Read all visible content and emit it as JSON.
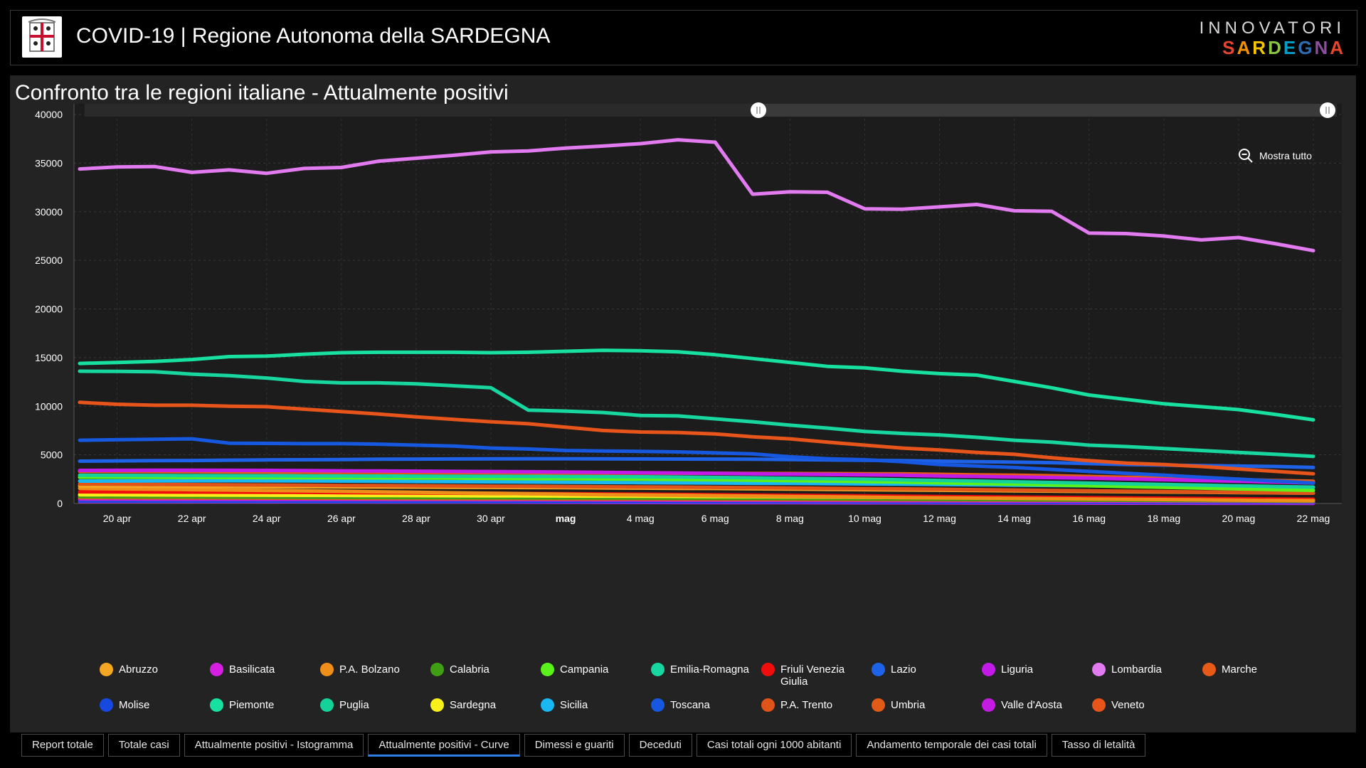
{
  "header": {
    "title": "COVID-19 | Regione Autonoma della SARDEGNA",
    "brand_top": "INNOVATORI",
    "brand_bottom_letters": [
      "S",
      "A",
      "R",
      "D",
      "E",
      "G",
      "N",
      "A"
    ],
    "brand_colors": [
      "#e8452c",
      "#f39200",
      "#f7c400",
      "#8cc63f",
      "#00a0c6",
      "#2e6db4",
      "#8a4f9e",
      "#e8452c"
    ]
  },
  "panel": {
    "title": "Confronto tra le regioni italiane - Attualmente positivi"
  },
  "zoom": {
    "label": "Mostra tutto"
  },
  "chart_data": {
    "type": "line",
    "title": "Confronto tra le regioni italiane - Attualmente positivi",
    "xlabel": "",
    "ylabel": "",
    "ylim": [
      0,
      40000
    ],
    "y_ticks": [
      0,
      5000,
      10000,
      15000,
      20000,
      25000,
      30000,
      35000,
      40000
    ],
    "x_start_day": 0,
    "x_end_day": 34,
    "x_ticks": [
      {
        "day": 1,
        "label": "20 apr",
        "bold": false
      },
      {
        "day": 3,
        "label": "22 apr",
        "bold": false
      },
      {
        "day": 5,
        "label": "24 apr",
        "bold": false
      },
      {
        "day": 7,
        "label": "26 apr",
        "bold": false
      },
      {
        "day": 9,
        "label": "28 apr",
        "bold": false
      },
      {
        "day": 11,
        "label": "30 apr",
        "bold": false
      },
      {
        "day": 13,
        "label": "mag",
        "bold": true
      },
      {
        "day": 15,
        "label": "4 mag",
        "bold": false
      },
      {
        "day": 17,
        "label": "6 mag",
        "bold": false
      },
      {
        "day": 19,
        "label": "8 mag",
        "bold": false
      },
      {
        "day": 21,
        "label": "10 mag",
        "bold": false
      },
      {
        "day": 23,
        "label": "12 mag",
        "bold": false
      },
      {
        "day": 25,
        "label": "14 mag",
        "bold": false
      },
      {
        "day": 27,
        "label": "16 mag",
        "bold": false
      },
      {
        "day": 29,
        "label": "18 mag",
        "bold": false
      },
      {
        "day": 31,
        "label": "20 mag",
        "bold": false
      },
      {
        "day": 33,
        "label": "22 mag",
        "bold": false
      }
    ],
    "series": [
      {
        "name": "Abruzzo",
        "color": "#f5a623",
        "values": [
          1800,
          1780,
          1760,
          1750,
          1740,
          1720,
          1710,
          1700,
          1690,
          1680,
          1660,
          1650,
          1640,
          1620,
          1600,
          1580,
          1560,
          1540,
          1510,
          1480,
          1450,
          1420,
          1390,
          1360,
          1330,
          1300,
          1270,
          1240,
          1210,
          1180,
          1150,
          1120,
          1090,
          1060
        ]
      },
      {
        "name": "Basilicata",
        "color": "#d61fe0",
        "values": [
          200,
          200,
          195,
          190,
          190,
          185,
          180,
          175,
          170,
          165,
          160,
          150,
          140,
          130,
          120,
          110,
          100,
          95,
          90,
          85,
          80,
          75,
          70,
          65,
          60,
          55,
          50,
          45,
          40,
          35,
          30,
          28,
          26,
          25
        ]
      },
      {
        "name": "P.A. Bolzano",
        "color": "#ef8f1a",
        "values": [
          1550,
          1500,
          1460,
          1420,
          1380,
          1340,
          1300,
          1250,
          1200,
          1150,
          1100,
          1050,
          1000,
          950,
          900,
          870,
          840,
          800,
          760,
          720,
          690,
          650,
          610,
          580,
          550,
          520,
          490,
          460,
          430,
          400,
          370,
          340,
          310,
          290
        ]
      },
      {
        "name": "Calabria",
        "color": "#3f9e13",
        "values": [
          700,
          690,
          680,
          670,
          660,
          650,
          640,
          630,
          620,
          610,
          600,
          590,
          580,
          570,
          560,
          550,
          540,
          530,
          520,
          505,
          490,
          470,
          450,
          430,
          410,
          390,
          370,
          350,
          330,
          310,
          290,
          270,
          250,
          230
        ]
      },
      {
        "name": "Campania",
        "color": "#5af21a",
        "values": [
          2700,
          2700,
          2690,
          2680,
          2670,
          2660,
          2650,
          2640,
          2630,
          2620,
          2600,
          2580,
          2560,
          2540,
          2520,
          2500,
          2470,
          2440,
          2400,
          2350,
          2300,
          2250,
          2200,
          2120,
          2050,
          1980,
          1900,
          1820,
          1740,
          1660,
          1580,
          1500,
          1420,
          1350
        ]
      },
      {
        "name": "Emilia-Romagna",
        "color": "#18d6a0",
        "values": [
          13600,
          13580,
          13550,
          13300,
          13150,
          12900,
          12550,
          12400,
          12400,
          12300,
          12100,
          11900,
          9600,
          9500,
          9350,
          9050,
          9000,
          8700,
          8400,
          8050,
          7750,
          7400,
          7200,
          7050,
          6800,
          6500,
          6300,
          6000,
          5850,
          5650,
          5450,
          5250,
          5050,
          4850
        ]
      },
      {
        "name": "Friuli Venezia Giulia",
        "color": "#f20d0d",
        "values": [
          1200,
          1190,
          1180,
          1170,
          1160,
          1150,
          1140,
          1120,
          1100,
          1080,
          1060,
          1040,
          1020,
          1000,
          980,
          960,
          930,
          900,
          870,
          840,
          810,
          780,
          750,
          720,
          690,
          660,
          630,
          600,
          570,
          540,
          510,
          480,
          450,
          430
        ]
      },
      {
        "name": "Lazio",
        "color": "#1e62e8",
        "values": [
          4350,
          4380,
          4400,
          4420,
          4450,
          4480,
          4500,
          4520,
          4550,
          4560,
          4580,
          4590,
          4600,
          4600,
          4590,
          4580,
          4570,
          4560,
          4550,
          4520,
          4480,
          4440,
          4400,
          4350,
          4300,
          4250,
          4200,
          4100,
          4000,
          3950,
          3900,
          3850,
          3800,
          3700
        ]
      },
      {
        "name": "Liguria",
        "color": "#c21be8",
        "values": [
          3400,
          3410,
          3420,
          3420,
          3410,
          3400,
          3380,
          3360,
          3340,
          3320,
          3300,
          3280,
          3260,
          3230,
          3200,
          3170,
          3140,
          3100,
          3060,
          3020,
          2980,
          2940,
          2900,
          2840,
          2780,
          2720,
          2660,
          2600,
          2520,
          2440,
          2360,
          2280,
          2200,
          2100
        ]
      },
      {
        "name": "Lombardia",
        "color": "#e27af0",
        "values": [
          34400,
          34600,
          34650,
          34050,
          34300,
          33950,
          34450,
          34550,
          35200,
          35500,
          35800,
          36150,
          36250,
          36550,
          36750,
          37000,
          37400,
          37150,
          31800,
          32050,
          32000,
          30300,
          30250,
          30500,
          30750,
          30100,
          30050,
          27800,
          27750,
          27500,
          27100,
          27350,
          26700,
          26000
        ]
      },
      {
        "name": "Marche",
        "color": "#e85a17",
        "values": [
          3300,
          3290,
          3280,
          3270,
          3250,
          3230,
          3210,
          3200,
          3190,
          3180,
          3170,
          3160,
          3150,
          3140,
          3130,
          3120,
          3110,
          3100,
          3090,
          3080,
          3070,
          3060,
          3040,
          3000,
          2950,
          2900,
          2850,
          2780,
          2700,
          2620,
          2540,
          2450,
          2360,
          2280
        ]
      },
      {
        "name": "Molise",
        "color": "#1749e0",
        "values": [
          250,
          245,
          240,
          235,
          230,
          225,
          220,
          215,
          210,
          205,
          200,
          195,
          190,
          185,
          180,
          175,
          170,
          165,
          160,
          155,
          150,
          145,
          140,
          135,
          130,
          125,
          120,
          115,
          110,
          105,
          100,
          95,
          92,
          90
        ]
      },
      {
        "name": "Piemonte",
        "color": "#17e0a0",
        "values": [
          14400,
          14500,
          14600,
          14800,
          15100,
          15150,
          15350,
          15500,
          15550,
          15550,
          15550,
          15500,
          15550,
          15650,
          15750,
          15700,
          15600,
          15300,
          14900,
          14500,
          14100,
          13950,
          13600,
          13350,
          13200,
          12550,
          11900,
          11150,
          10700,
          10250,
          9950,
          9650,
          9150,
          8600
        ]
      },
      {
        "name": "Puglia",
        "color": "#14d29a",
        "values": [
          2900,
          2890,
          2880,
          2870,
          2860,
          2850,
          2840,
          2830,
          2820,
          2810,
          2800,
          2790,
          2780,
          2770,
          2760,
          2740,
          2710,
          2680,
          2640,
          2590,
          2540,
          2490,
          2430,
          2370,
          2300,
          2230,
          2160,
          2090,
          2020,
          1950,
          1880,
          1810,
          1740,
          1680
        ]
      },
      {
        "name": "Sardegna",
        "color": "#f7f01a",
        "values": [
          900,
          890,
          880,
          870,
          860,
          850,
          840,
          830,
          820,
          810,
          800,
          790,
          780,
          770,
          760,
          745,
          730,
          715,
          700,
          680,
          660,
          640,
          620,
          600,
          580,
          560,
          540,
          520,
          500,
          480,
          460,
          440,
          420,
          400
        ]
      },
      {
        "name": "Sicilia",
        "color": "#1ab8f2",
        "values": [
          2300,
          2310,
          2320,
          2330,
          2340,
          2330,
          2320,
          2300,
          2280,
          2260,
          2240,
          2220,
          2200,
          2180,
          2160,
          2140,
          2120,
          2100,
          2080,
          2060,
          2040,
          2010,
          1980,
          1950,
          1920,
          1890,
          1860,
          1830,
          1800,
          1770,
          1740,
          1710,
          1680,
          1650
        ]
      },
      {
        "name": "Toscana",
        "color": "#1658e0",
        "values": [
          6500,
          6550,
          6600,
          6650,
          6200,
          6180,
          6150,
          6150,
          6100,
          6000,
          5900,
          5700,
          5600,
          5450,
          5400,
          5350,
          5300,
          5200,
          5100,
          4800,
          4600,
          4500,
          4300,
          4000,
          3850,
          3700,
          3500,
          3300,
          3100,
          2900,
          2700,
          2500,
          2300,
          2100
        ]
      },
      {
        "name": "P.A. Trento",
        "color": "#e0541a",
        "values": [
          2000,
          1980,
          1960,
          1940,
          1920,
          1900,
          1880,
          1860,
          1840,
          1820,
          1800,
          1780,
          1760,
          1740,
          1720,
          1700,
          1680,
          1650,
          1620,
          1590,
          1560,
          1530,
          1500,
          1460,
          1420,
          1380,
          1340,
          1300,
          1260,
          1220,
          1180,
          1140,
          1100,
          1060
        ]
      },
      {
        "name": "Umbria",
        "color": "#e05a18",
        "values": [
          600,
          590,
          580,
          570,
          560,
          550,
          540,
          530,
          520,
          510,
          500,
          490,
          480,
          470,
          460,
          450,
          440,
          430,
          420,
          410,
          400,
          390,
          380,
          370,
          360,
          350,
          340,
          330,
          320,
          310,
          300,
          290,
          280,
          270
        ]
      },
      {
        "name": "Valle d'Aosta",
        "color": "#c41be0",
        "values": [
          450,
          445,
          440,
          435,
          430,
          425,
          420,
          415,
          410,
          405,
          400,
          390,
          380,
          370,
          360,
          350,
          340,
          330,
          320,
          310,
          300,
          290,
          280,
          270,
          260,
          250,
          240,
          230,
          220,
          210,
          200,
          190,
          180,
          170
        ]
      },
      {
        "name": "Veneto",
        "color": "#e8551a",
        "values": [
          10400,
          10200,
          10100,
          10100,
          10000,
          9950,
          9700,
          9450,
          9200,
          8900,
          8650,
          8400,
          8200,
          7850,
          7500,
          7350,
          7300,
          7150,
          6850,
          6650,
          6300,
          6000,
          5700,
          5500,
          5250,
          5050,
          4700,
          4400,
          4150,
          4000,
          3800,
          3550,
          3300,
          3050
        ]
      }
    ]
  },
  "tabs": [
    {
      "label": "Report totale",
      "active": false
    },
    {
      "label": "Totale casi",
      "active": false
    },
    {
      "label": "Attualmente positivi - Istogramma",
      "active": false
    },
    {
      "label": "Attualmente positivi - Curve",
      "active": true
    },
    {
      "label": "Dimessi e guariti",
      "active": false
    },
    {
      "label": "Deceduti",
      "active": false
    },
    {
      "label": "Casi totali ogni 1000 abitanti",
      "active": false
    },
    {
      "label": "Andamento temporale dei casi totali",
      "active": false
    },
    {
      "label": "Tasso di letalità",
      "active": false
    }
  ]
}
